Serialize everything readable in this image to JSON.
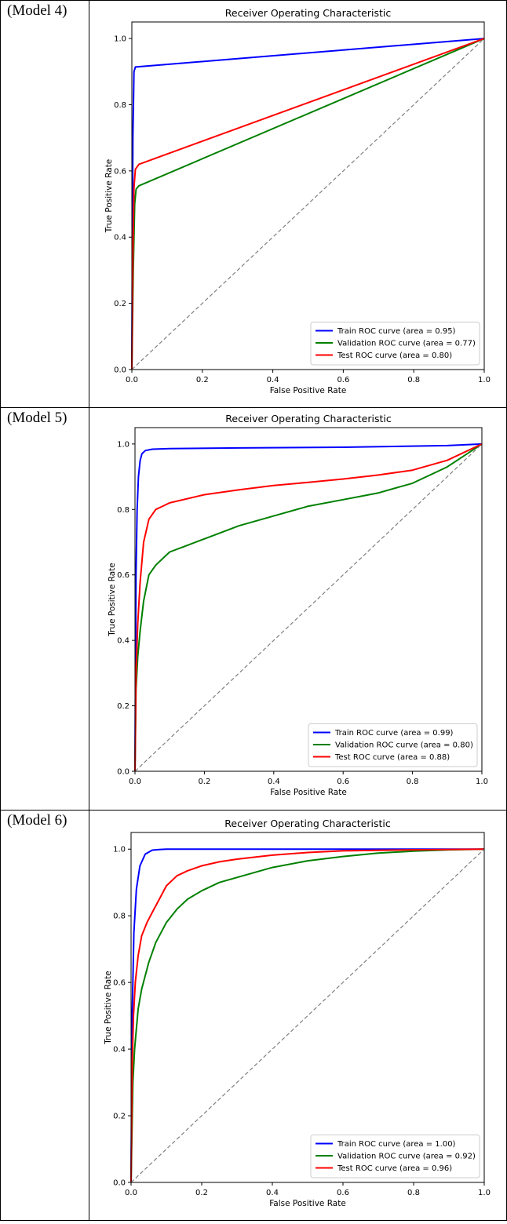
{
  "rows": [
    {
      "label": "(Model 4)"
    },
    {
      "label": "(Model 5)"
    },
    {
      "label": "(Model 6)"
    }
  ],
  "chart_data": [
    {
      "type": "line",
      "title": "Receiver Operating Characteristic",
      "xlabel": "False Positive Rate",
      "ylabel": "True Positive Rate",
      "xlim": [
        0,
        1
      ],
      "ylim": [
        0,
        1.05
      ],
      "xticks": [
        "0.0",
        "0.2",
        "0.4",
        "0.6",
        "0.8",
        "1.0"
      ],
      "yticks": [
        "0.0",
        "0.2",
        "0.4",
        "0.6",
        "0.8",
        "1.0"
      ],
      "legend_position": "lower-right",
      "series": [
        {
          "name": "Train ROC curve (area = 0.95)",
          "color": "#0000ff",
          "x": [
            0,
            0.003,
            0.006,
            0.01,
            1.0
          ],
          "y": [
            0,
            0.7,
            0.9,
            0.914,
            1.0
          ]
        },
        {
          "name": "Validation ROC curve (area = 0.77)",
          "color": "#008000",
          "x": [
            0,
            0.004,
            0.008,
            0.012,
            0.02,
            1.0
          ],
          "y": [
            0,
            0.3,
            0.5,
            0.545,
            0.555,
            1.0
          ]
        },
        {
          "name": "Test ROC curve (area = 0.80)",
          "color": "#ff0000",
          "x": [
            0,
            0.003,
            0.006,
            0.01,
            0.02,
            1.0
          ],
          "y": [
            0,
            0.35,
            0.55,
            0.605,
            0.62,
            1.0
          ]
        },
        {
          "name": "chance",
          "color": "#808080",
          "dashed": true,
          "x": [
            0,
            1
          ],
          "y": [
            0,
            1
          ]
        }
      ]
    },
    {
      "type": "line",
      "title": "Receiver Operating Characteristic",
      "xlabel": "False Positive Rate",
      "ylabel": "True Positive Rate",
      "xlim": [
        0,
        1
      ],
      "ylim": [
        0,
        1.05
      ],
      "xticks": [
        "0.0",
        "0.2",
        "0.4",
        "0.6",
        "0.8",
        "1.0"
      ],
      "yticks": [
        "0.0",
        "0.2",
        "0.4",
        "0.6",
        "0.8",
        "1.0"
      ],
      "legend_position": "lower-right",
      "series": [
        {
          "name": "Train ROC curve (area = 0.99)",
          "color": "#0000ff",
          "x": [
            0,
            0.003,
            0.006,
            0.01,
            0.015,
            0.02,
            0.03,
            0.05,
            0.1,
            0.3,
            0.6,
            0.9,
            1.0
          ],
          "y": [
            0,
            0.6,
            0.8,
            0.9,
            0.95,
            0.97,
            0.98,
            0.984,
            0.986,
            0.988,
            0.99,
            0.995,
            1.0
          ]
        },
        {
          "name": "Validation ROC curve (area = 0.80)",
          "color": "#008000",
          "x": [
            0,
            0.003,
            0.008,
            0.015,
            0.025,
            0.04,
            0.06,
            0.1,
            0.15,
            0.2,
            0.3,
            0.4,
            0.5,
            0.6,
            0.7,
            0.8,
            0.9,
            1.0
          ],
          "y": [
            0,
            0.25,
            0.35,
            0.43,
            0.52,
            0.6,
            0.63,
            0.67,
            0.69,
            0.71,
            0.75,
            0.78,
            0.81,
            0.83,
            0.85,
            0.88,
            0.93,
            1.0
          ]
        },
        {
          "name": "Test ROC curve (area = 0.88)",
          "color": "#ff0000",
          "x": [
            0,
            0.003,
            0.008,
            0.015,
            0.025,
            0.04,
            0.06,
            0.08,
            0.1,
            0.2,
            0.3,
            0.4,
            0.5,
            0.6,
            0.7,
            0.8,
            0.9,
            1.0
          ],
          "y": [
            0,
            0.3,
            0.45,
            0.58,
            0.7,
            0.77,
            0.8,
            0.81,
            0.82,
            0.845,
            0.86,
            0.873,
            0.883,
            0.893,
            0.905,
            0.92,
            0.95,
            1.0
          ]
        },
        {
          "name": "chance",
          "color": "#808080",
          "dashed": true,
          "x": [
            0,
            1
          ],
          "y": [
            0,
            1
          ]
        }
      ]
    },
    {
      "type": "line",
      "title": "Receiver Operating Characteristic",
      "xlabel": "False Positive Rate",
      "ylabel": "True Positive Rate",
      "xlim": [
        0,
        1
      ],
      "ylim": [
        0,
        1.05
      ],
      "xticks": [
        "0.0",
        "0.2",
        "0.4",
        "0.6",
        "0.8",
        "1.0"
      ],
      "yticks": [
        "0.0",
        "0.2",
        "0.4",
        "0.6",
        "0.8",
        "1.0"
      ],
      "legend_position": "lower-right",
      "series": [
        {
          "name": "Train ROC curve (area = 1.00)",
          "color": "#0000ff",
          "x": [
            0,
            0.003,
            0.008,
            0.015,
            0.025,
            0.04,
            0.06,
            0.08,
            0.1,
            1.0
          ],
          "y": [
            0,
            0.5,
            0.75,
            0.88,
            0.95,
            0.985,
            0.997,
            0.999,
            1.0,
            1.0
          ]
        },
        {
          "name": "Validation ROC curve (area = 0.92)",
          "color": "#008000",
          "x": [
            0,
            0.005,
            0.01,
            0.02,
            0.03,
            0.05,
            0.07,
            0.1,
            0.13,
            0.16,
            0.2,
            0.25,
            0.3,
            0.4,
            0.5,
            0.6,
            0.7,
            0.8,
            0.9,
            1.0
          ],
          "y": [
            0,
            0.3,
            0.4,
            0.52,
            0.58,
            0.66,
            0.72,
            0.78,
            0.82,
            0.85,
            0.875,
            0.9,
            0.915,
            0.945,
            0.965,
            0.978,
            0.988,
            0.994,
            0.998,
            1.0
          ]
        },
        {
          "name": "Test ROC curve (area = 0.96)",
          "color": "#ff0000",
          "x": [
            0,
            0.003,
            0.007,
            0.012,
            0.02,
            0.03,
            0.045,
            0.06,
            0.08,
            0.1,
            0.13,
            0.16,
            0.2,
            0.25,
            0.3,
            0.4,
            0.5,
            0.6,
            0.8,
            1.0
          ],
          "y": [
            0,
            0.35,
            0.5,
            0.6,
            0.68,
            0.74,
            0.78,
            0.81,
            0.85,
            0.89,
            0.92,
            0.935,
            0.95,
            0.962,
            0.97,
            0.982,
            0.99,
            0.995,
            0.998,
            1.0
          ]
        },
        {
          "name": "chance",
          "color": "#808080",
          "dashed": true,
          "x": [
            0,
            1
          ],
          "y": [
            0,
            1
          ]
        }
      ]
    }
  ]
}
